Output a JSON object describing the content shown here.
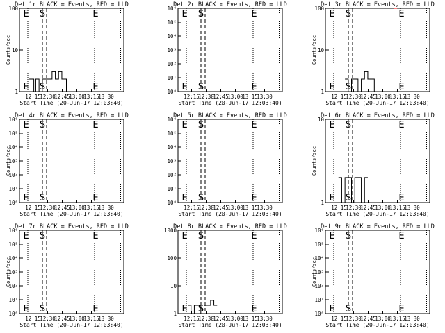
{
  "figure_title": "",
  "chart_data": [
    {
      "id": "det1",
      "type": "line",
      "title": "Det 1r BLACK = Events, RED = LLD",
      "ylabel": "Counts/sec",
      "xlabel": "Start Time (20-Jun-17 12:03:40)",
      "xticks": [
        "12:15",
        "12:30",
        "12:45",
        "13:00",
        "13:15",
        "13:30"
      ],
      "yscale": "log",
      "ylim": [
        1,
        100
      ],
      "yticks": [
        "1",
        "10",
        "100"
      ],
      "markers": [
        "E",
        "S",
        "E"
      ],
      "series": [
        {
          "name": "Events",
          "color": "#000000",
          "x": [
            12.15,
            12.2,
            12.22,
            12.25,
            12.3,
            12.35,
            12.4,
            12.45,
            12.5,
            12.55,
            12.6,
            12.65,
            12.7,
            12.72
          ],
          "y": [
            2,
            2,
            1,
            2,
            1,
            2,
            2,
            2,
            3,
            2,
            3,
            2,
            2,
            1
          ]
        }
      ]
    },
    {
      "id": "det2",
      "type": "line",
      "title": "Det 2r BLACK = Events, RED = LLD",
      "ylabel": "",
      "xlabel": "Start Time (20-Jun-17 12:03:40)",
      "xticks": [
        "12:15",
        "12:30",
        "12:45",
        "13:00",
        "13:15",
        "13:30"
      ],
      "yscale": "log",
      "ylim": [
        1,
        1000000
      ],
      "yticks": [
        "10⁰",
        "10¹",
        "10²",
        "10³",
        "10⁴",
        "10⁵",
        "10⁶"
      ],
      "markers": [
        "E",
        "S",
        "E"
      ],
      "series": []
    },
    {
      "id": "det3",
      "type": "line",
      "title": "Det 3r BLACK = Events, RED = LLD",
      "ylabel": "Counts/sec",
      "xlabel": "Start Time (20-Jun-17 12:03:40)",
      "xticks": [
        "12:15",
        "12:30",
        "12:45",
        "13:00",
        "13:15",
        "13:30"
      ],
      "yscale": "log",
      "ylim": [
        1,
        100
      ],
      "yticks": [
        "1",
        "10",
        "100"
      ],
      "markers": [
        "E",
        "S",
        "E"
      ],
      "series": [
        {
          "name": "Events",
          "color": "#000000",
          "x": [
            12.3,
            12.35,
            12.4,
            12.45,
            12.5,
            12.55,
            12.6,
            12.65,
            12.7,
            12.75
          ],
          "y": [
            2,
            1,
            2,
            2,
            1,
            2,
            3,
            2,
            2,
            1
          ]
        },
        {
          "name": "LLD",
          "color": "#ff0000",
          "x": [
            13.05,
            13.1
          ],
          "y": [
            100,
            100
          ]
        }
      ]
    },
    {
      "id": "det4",
      "type": "line",
      "title": "Det 4r BLACK = Events, RED = LLD",
      "ylabel": "Counts/sec",
      "xlabel": "Start Time (20-Jun-17 12:03:40)",
      "xticks": [
        "12:15",
        "12:30",
        "12:45",
        "13:00",
        "13:15",
        "13:30"
      ],
      "yscale": "log",
      "ylim": [
        1,
        1000000
      ],
      "yticks": [
        "10⁰",
        "10¹",
        "10²",
        "10³",
        "10⁴",
        "10⁵",
        "10⁶"
      ],
      "markers": [
        "E",
        "S",
        "E"
      ],
      "series": []
    },
    {
      "id": "det5",
      "type": "line",
      "title": "Det 5r BLACK = Events, RED = LLD",
      "ylabel": "",
      "xlabel": "Start Time (20-Jun-17 12:03:40)",
      "xticks": [
        "12:15",
        "12:30",
        "12:45",
        "13:00",
        "13:15",
        "13:30"
      ],
      "yscale": "log",
      "ylim": [
        1,
        1000000
      ],
      "yticks": [
        "10⁰",
        "10¹",
        "10²",
        "10³",
        "10⁴",
        "10⁵",
        "10⁶"
      ],
      "markers": [
        "E",
        "S",
        "E"
      ],
      "series": []
    },
    {
      "id": "det6",
      "type": "line",
      "title": "Det 6r BLACK = Events, RED = LLD",
      "ylabel": "Counts/sec",
      "xlabel": "Start Time (20-Jun-17 12:03:40)",
      "xticks": [
        "12:15",
        "12:30",
        "12:45",
        "13:00",
        "13:15",
        "13:30"
      ],
      "yscale": "log",
      "ylim": [
        1,
        10
      ],
      "yticks": [
        "1",
        "10"
      ],
      "markers": [
        "E",
        "S",
        "E"
      ],
      "series": [
        {
          "name": "Events",
          "color": "#000000",
          "x": [
            12.2,
            12.25,
            12.3,
            12.35,
            12.4,
            12.45,
            12.5,
            12.55,
            12.6,
            12.65
          ],
          "y": [
            2,
            1,
            2,
            2,
            1,
            2,
            2,
            1,
            2,
            2
          ]
        }
      ]
    },
    {
      "id": "det7",
      "type": "line",
      "title": "Det 7r BLACK = Events, RED = LLD",
      "ylabel": "Counts/sec",
      "xlabel": "Start Time (20-Jun-17 12:03:40)",
      "xticks": [
        "12:15",
        "12:30",
        "12:45",
        "13:00",
        "13:15",
        "13:30"
      ],
      "yscale": "log",
      "ylim": [
        1,
        1000000
      ],
      "yticks": [
        "10⁰",
        "10¹",
        "10²",
        "10³",
        "10⁴",
        "10⁵",
        "10⁶"
      ],
      "markers": [
        "E",
        "S",
        "E"
      ],
      "series": []
    },
    {
      "id": "det8",
      "type": "line",
      "title": "Det 8r BLACK = Events, RED = LLD",
      "ylabel": "",
      "xlabel": "Start Time (20-Jun-17 12:03:40)",
      "xticks": [
        "12:15",
        "12:30",
        "12:45",
        "13:00",
        "13:15",
        "13:30"
      ],
      "yscale": "log",
      "ylim": [
        1,
        1000
      ],
      "yticks": [
        "1",
        "10",
        "100",
        "1000"
      ],
      "markers": [
        "E",
        "S",
        "E"
      ],
      "series": [
        {
          "name": "Events",
          "color": "#000000",
          "x": [
            12.15,
            12.2,
            12.25,
            12.3,
            12.35,
            12.4,
            12.45,
            12.5,
            12.55,
            12.6
          ],
          "y": [
            2,
            1,
            2,
            2,
            1,
            2,
            2,
            3,
            2,
            2
          ]
        }
      ]
    },
    {
      "id": "det9",
      "type": "line",
      "title": "Det 9r BLACK = Events, RED = LLD",
      "ylabel": "Counts/sec",
      "xlabel": "Start Time (20-Jun-17 12:03:40)",
      "xticks": [
        "12:15",
        "12:30",
        "12:45",
        "13:00",
        "13:15",
        "13:30"
      ],
      "yscale": "log",
      "ylim": [
        1,
        1000000
      ],
      "yticks": [
        "10⁰",
        "10¹",
        "10²",
        "10³",
        "10⁴",
        "10⁵",
        "10⁶"
      ],
      "markers": [
        "E",
        "S",
        "E"
      ],
      "series": []
    }
  ]
}
